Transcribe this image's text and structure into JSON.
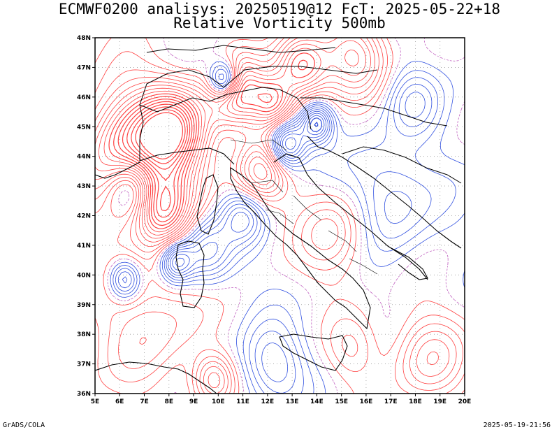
{
  "title": {
    "line1": "ECMWF0200 analisys: 20250519@12 FcT: 2025-05-22+18",
    "line2": "Relative Vorticity 500mb"
  },
  "footer": {
    "left": "GrADS/COLA",
    "right": "2025-05-19-21:56"
  },
  "map": {
    "lon_range": [
      5,
      20
    ],
    "lat_range": [
      36,
      48
    ],
    "lon_labels": [
      "5E",
      "6E",
      "7E",
      "8E",
      "9E",
      "10E",
      "11E",
      "12E",
      "13E",
      "14E",
      "15E",
      "16E",
      "17E",
      "18E",
      "19E",
      "20E"
    ],
    "lat_labels": [
      "36N",
      "37N",
      "38N",
      "39N",
      "40N",
      "41N",
      "42N",
      "43N",
      "44N",
      "45N",
      "46N",
      "47N",
      "48N"
    ],
    "colors": {
      "positive": "#ff4040",
      "negative": "#3050e0",
      "zero": "#c060c0",
      "border": "#000000",
      "grid": "#999999"
    }
  }
}
